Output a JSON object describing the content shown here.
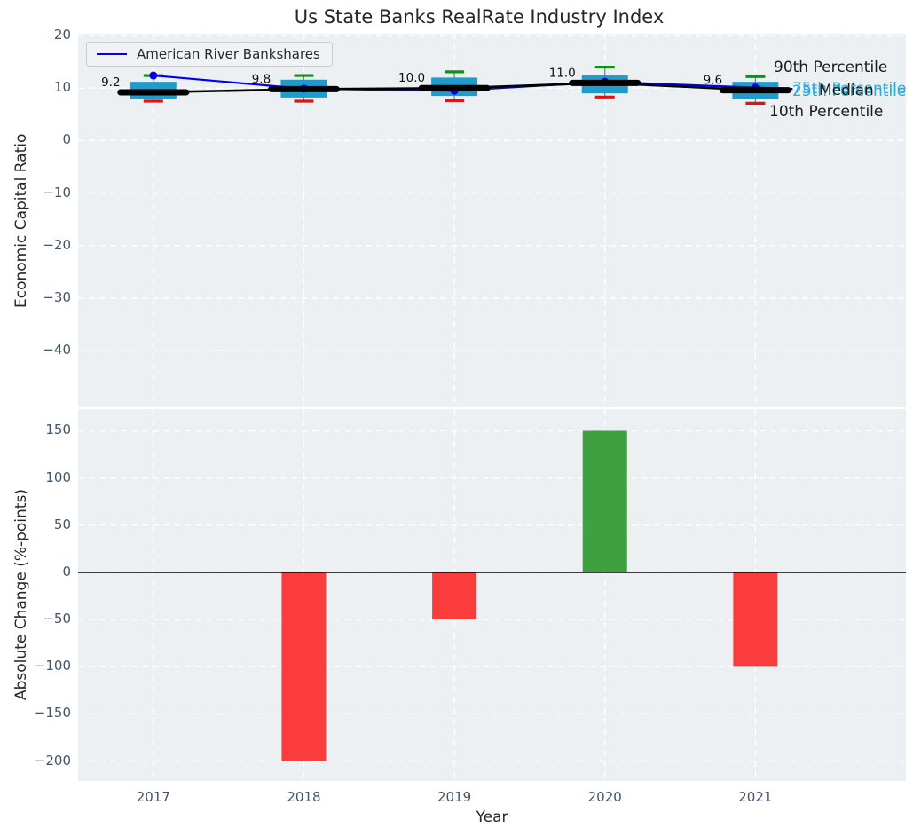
{
  "figure": {
    "title": "Us State Banks RealRate Industry Index",
    "background": "#ffffff",
    "panel_background": "#edf0f2",
    "grid_style": "white dashed"
  },
  "legend": {
    "label": "American River Bankshares",
    "line_color": "#0000ee",
    "position": "upper-left"
  },
  "chart_data": [
    {
      "type": "boxplot+line",
      "title": "Us State Banks RealRate Industry Index",
      "ylabel": "Economic Capital Ratio",
      "xlabel": "",
      "ylim": [
        -50.8,
        20.35
      ],
      "xlim": [
        2016.5,
        2022
      ],
      "yticks": [
        20,
        10,
        0,
        -10,
        -20,
        -30,
        -40
      ],
      "categories": [
        2017,
        2018,
        2019,
        2020,
        2021
      ],
      "boxes": {
        "p90": [
          12.4,
          12.4,
          13.1,
          14.0,
          12.2
        ],
        "p75": [
          11.2,
          11.6,
          12.0,
          12.4,
          11.2
        ],
        "median": [
          9.2,
          9.8,
          10.0,
          11.0,
          9.6
        ],
        "p25": [
          8.0,
          8.2,
          8.5,
          9.0,
          7.9
        ],
        "p10": [
          7.5,
          7.5,
          7.6,
          8.3,
          7.1
        ]
      },
      "median_labels": [
        "9.2",
        "9.8",
        "10.0",
        "11.0",
        "9.6"
      ],
      "series": [
        {
          "name": "American River Bankshares",
          "color": "#0000ee",
          "marker": "dot",
          "values": [
            12.4,
            9.9,
            9.5,
            11.2,
            10.1
          ]
        },
        {
          "name": "Median",
          "color": "#000000",
          "marker": "none",
          "values": [
            9.2,
            9.8,
            10.0,
            11.0,
            9.6
          ]
        }
      ],
      "side_labels": [
        {
          "text": "75th Percentile",
          "color": "#30a9d9"
        },
        {
          "text": "25th Percentile",
          "color": "#30a9d9"
        },
        {
          "text": "90th Percentile",
          "color": "#1a1a1a"
        },
        {
          "text": "Median",
          "color": "#1a1a1a"
        },
        {
          "text": "10th Percentile",
          "color": "#1a1a1a"
        }
      ],
      "colors": {
        "box_fill": "#1f9ccb",
        "whisker": "#777777",
        "cap_high": "#0a9410",
        "cap_low": "#e01212",
        "median_line": "#000000",
        "company_line": "#0000ee"
      }
    },
    {
      "type": "bar",
      "ylabel": "Absolute Change (%-points)",
      "xlabel": "Year",
      "ylim": [
        -221,
        173
      ],
      "yticks": [
        150,
        100,
        50,
        0,
        -50,
        -100,
        -150,
        -200
      ],
      "categories": [
        "2017",
        "2018",
        "2019",
        "2020",
        "2021"
      ],
      "values": [
        0,
        -200,
        -50,
        150,
        -100
      ],
      "colors": {
        "positive": "#3fa040",
        "negative": "#fa3c3c",
        "zero_line": "#000000"
      }
    }
  ]
}
